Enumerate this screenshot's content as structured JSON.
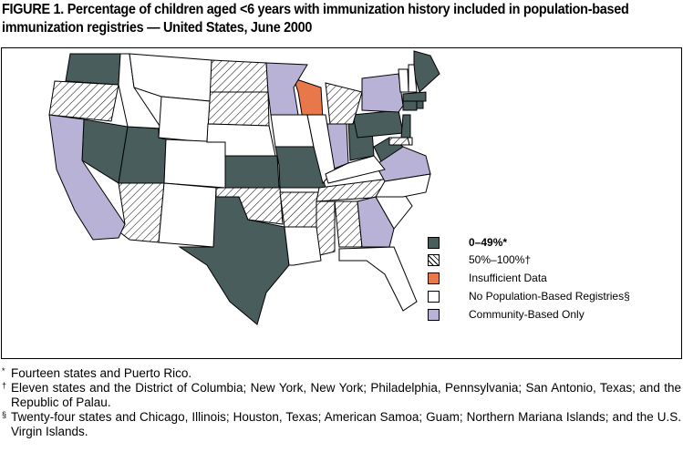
{
  "title": "FIGURE 1. Percentage of children aged <6 years with immunization history included in population-based immunization registries — United States, June 2000",
  "colors": {
    "low": "#495d5c",
    "hatched": "#ffffff",
    "insufficient": "#e8784a",
    "none": "#ffffff",
    "community": "#b8b3d6"
  },
  "legend": [
    {
      "key": "low",
      "label": "0–49%*",
      "mark": "*",
      "bold": true
    },
    {
      "key": "hatched",
      "label": "50%–100%†",
      "mark": "†"
    },
    {
      "key": "insufficient",
      "label": "Insufficient Data"
    },
    {
      "key": "none",
      "label": "No Population-Based Registries§",
      "mark": "§"
    },
    {
      "key": "community",
      "label": "Community-Based Only"
    }
  ],
  "states": {
    "low": [
      "WA",
      "NV",
      "UT",
      "KS",
      "MO",
      "TX",
      "OH",
      "PA",
      "WV",
      "ME",
      "MA",
      "CT",
      "RI",
      "NJ"
    ],
    "hatched": [
      "OR",
      "ND",
      "SD",
      "AZ",
      "OK",
      "AR",
      "MS",
      "AL",
      "MI",
      "TN",
      "MD"
    ],
    "insufficient": [
      "WI"
    ],
    "community": [
      "CA",
      "MN",
      "NY",
      "IN",
      "VA",
      "GA"
    ],
    "none": [
      "ID",
      "MT",
      "WY",
      "CO",
      "NM",
      "NE",
      "IA",
      "LA",
      "IL",
      "KY",
      "FL",
      "SC",
      "NC",
      "VT",
      "NH",
      "DE"
    ]
  },
  "footnotes": [
    {
      "mark": "*",
      "text": "Fourteen states and Puerto Rico."
    },
    {
      "mark": "†",
      "text": "Eleven states and the District of Columbia; New York, New York; Philadelphia, Pennsylvania; San Antonio, Texas; and the Republic of Palau."
    },
    {
      "mark": "§",
      "text": "Twenty-four states and Chicago, Illinois; Houston, Texas; American Samoa; Guam; Northern Mariana Islands; and the U.S. Virgin Islands."
    }
  ]
}
